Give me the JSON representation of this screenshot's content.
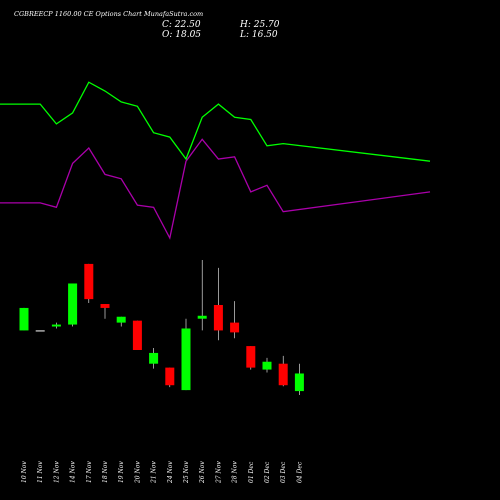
{
  "chart_data": {
    "type": "candlestick",
    "title": "CGBREECP 1160.00  CE Options  Chart MunafaSutra.com",
    "header": {
      "close_label": "C: 22.50",
      "open_label": "O: 18.05",
      "high_label": "H: 25.70",
      "low_label": "L: 16.50"
    },
    "categories": [
      "10 Nov",
      "11 Nov",
      "12 Nov",
      "14 Nov",
      "17 Nov",
      "18 Nov",
      "19 Nov",
      "20 Nov",
      "21 Nov",
      "24 Nov",
      "25 Nov",
      "26 Nov",
      "27 Nov",
      "28 Nov",
      "01 Dec",
      "02 Dec",
      "03 Dec",
      "04 Dec"
    ],
    "candles": [
      {
        "open": 31.0,
        "close": 42.5,
        "high": 42.5,
        "low": 31.0
      },
      {
        "open": 31.0,
        "close": 31.0,
        "high": 31.0,
        "low": 31.0
      },
      {
        "open": 33.0,
        "close": 34.0,
        "high": 35.0,
        "low": 32.0
      },
      {
        "open": 34.0,
        "close": 55.0,
        "high": 55.0,
        "low": 33.0
      },
      {
        "open": 65.0,
        "close": 47.0,
        "high": 65.0,
        "low": 45.0
      },
      {
        "open": 44.5,
        "close": 42.5,
        "high": 44.5,
        "low": 37.0
      },
      {
        "open": 35.0,
        "close": 38.0,
        "high": 38.0,
        "low": 33.0
      },
      {
        "open": 36.0,
        "close": 21.0,
        "high": 36.0,
        "low": 21.0
      },
      {
        "open": 14.0,
        "close": 19.5,
        "high": 22.0,
        "low": 11.5
      },
      {
        "open": 12.0,
        "close": 3.0,
        "high": 12.0,
        "low": 2.0
      },
      {
        "open": 0.5,
        "close": 32.0,
        "high": 37.0,
        "low": 0.5
      },
      {
        "open": 37.0,
        "close": 38.5,
        "high": 67.0,
        "low": 31.0
      },
      {
        "open": 44.0,
        "close": 31.0,
        "high": 63.0,
        "low": 26.0
      },
      {
        "open": 35.0,
        "close": 30.0,
        "high": 46.0,
        "low": 27.0
      },
      {
        "open": 23.0,
        "close": 12.0,
        "high": 23.0,
        "low": 11.0
      },
      {
        "open": 11.0,
        "close": 15.0,
        "high": 17.0,
        "low": 9.5
      },
      {
        "open": 14.0,
        "close": 3.0,
        "high": 18.0,
        "low": 2.5
      },
      {
        "open": 0.0,
        "close": 9.0,
        "high": 14.0,
        "low": -2.0
      }
    ],
    "upper_band": [
      85,
      85,
      76,
      81,
      95,
      91,
      86,
      84,
      72,
      70,
      60,
      79,
      85,
      79,
      78,
      66,
      67,
      59
    ],
    "lower_band": [
      40,
      40,
      38,
      58,
      65,
      53,
      51,
      39,
      38,
      24,
      59,
      69,
      60,
      61,
      45,
      48,
      36,
      45
    ],
    "colors": {
      "up": "#00ff00",
      "down": "#ff0000",
      "doji": "#ffffff",
      "upper_band": "#00ff00",
      "lower_band": "#aa00aa",
      "wick": "#ffffff",
      "background": "#000000"
    }
  }
}
